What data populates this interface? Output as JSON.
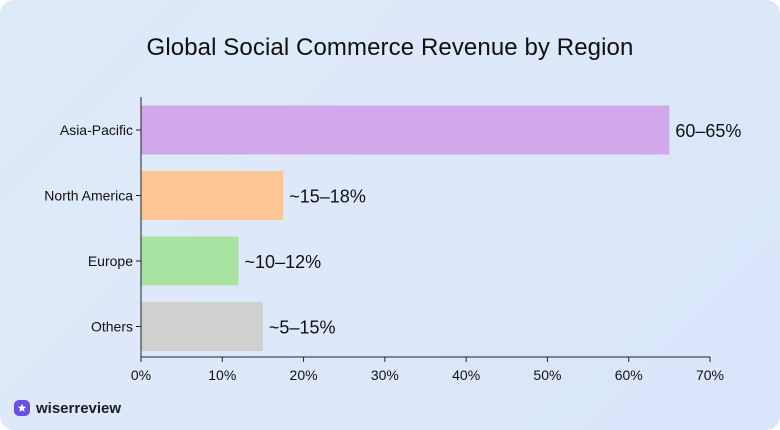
{
  "colors": {
    "card_bg": "#dde8f8",
    "axis": "#222222",
    "text": "#111111",
    "brand": "#6a4fe0"
  },
  "brand": {
    "name": "wiserreview",
    "icon": "star-badge-icon"
  },
  "chart_data": {
    "type": "bar",
    "orientation": "horizontal",
    "title": "Global Social Commerce Revenue by Region",
    "xlabel": "",
    "ylabel": "",
    "xlim": [
      0,
      70
    ],
    "x_ticks": [
      0,
      10,
      20,
      30,
      40,
      50,
      60,
      70
    ],
    "x_tick_labels": [
      "0%",
      "10%",
      "20%",
      "30%",
      "40%",
      "50%",
      "60%",
      "70%"
    ],
    "grid": false,
    "categories": [
      "Asia-Pacific",
      "North America",
      "Europe",
      "Others"
    ],
    "values": [
      65,
      17.5,
      12,
      15
    ],
    "data_labels": [
      "60–65%",
      "~15–18%",
      "~10–12%",
      "~5–15%"
    ],
    "bar_colors": [
      "#d1a9ea",
      "#fdc795",
      "#a8e3a1",
      "#d0d0d0"
    ]
  }
}
